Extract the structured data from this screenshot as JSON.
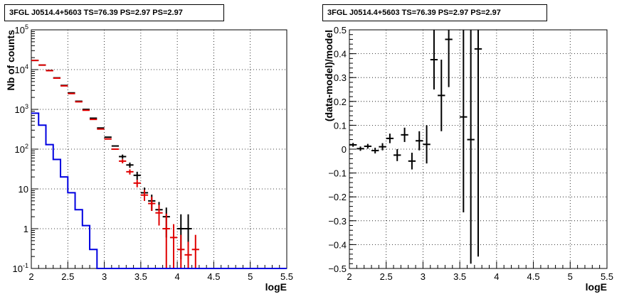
{
  "chart_data": [
    {
      "type": "line",
      "title": "3FGL J0514.4+5603 TS=76.39 PS=2.97 PS=2.97",
      "xlabel": "logE",
      "ylabel": "Nb of counts",
      "xlim": [
        2,
        5.5
      ],
      "ylim": [
        0.1,
        100000
      ],
      "yscale": "log",
      "grid": true,
      "x_ticks": [
        "2",
        "2.5",
        "3",
        "3.5",
        "4",
        "4.5",
        "5",
        "5.5"
      ],
      "y_ticks": [
        "10^-1",
        "1",
        "10",
        "10^2",
        "10^3",
        "10^4",
        "10^5"
      ],
      "series": [
        {
          "color": "#000000",
          "x": [
            2.05,
            2.15,
            2.25,
            2.35,
            2.45,
            2.55,
            2.65,
            2.75,
            2.85,
            2.95,
            3.05,
            3.15,
            3.25,
            3.35,
            3.45,
            3.55,
            3.65,
            3.75,
            3.85,
            4.05,
            4.15
          ],
          "y": [
            17000,
            13000,
            9500,
            6200,
            4000,
            2600,
            1600,
            1000,
            600,
            340,
            200,
            120,
            65,
            40,
            22,
            8,
            5,
            3,
            2,
            1,
            1
          ],
          "yerr_low": [
            0,
            0,
            0,
            0,
            0,
            0,
            0,
            0,
            0,
            0,
            0,
            0,
            8,
            6,
            5,
            2.8,
            2.2,
            1.7,
            1.4,
            0.83,
            0.83
          ],
          "yerr_high": [
            0,
            0,
            0,
            0,
            0,
            0,
            0,
            0,
            0,
            0,
            0,
            0,
            8,
            6,
            5,
            2.8,
            2.2,
            1.7,
            1.4,
            1.3,
            1.3
          ]
        },
        {
          "color": "#e00000",
          "x": [
            2.05,
            2.15,
            2.25,
            2.35,
            2.45,
            2.55,
            2.65,
            2.75,
            2.85,
            2.95,
            3.05,
            3.15,
            3.25,
            3.35,
            3.45,
            3.55,
            3.65,
            3.75,
            3.85,
            3.95,
            4.05,
            4.15,
            4.25
          ],
          "y": [
            17000,
            13000,
            9400,
            6100,
            3900,
            2500,
            1550,
            950,
            560,
            320,
            180,
            100,
            50,
            27,
            14,
            7,
            4.3,
            2.5,
            1,
            0.6,
            0.3,
            0.22,
            0.3
          ],
          "yerr_low": [
            0,
            0,
            0,
            0,
            0,
            0,
            0,
            0,
            0,
            0,
            0,
            0,
            6,
            4,
            3,
            2,
            1.5,
            1.3,
            0.9,
            0.5,
            0.2,
            0.12,
            0.2
          ],
          "yerr_high": [
            0,
            0,
            0,
            0,
            0,
            0,
            0,
            0,
            0,
            0,
            0,
            0,
            6,
            4,
            3,
            2.5,
            2,
            1.5,
            1.4,
            0.7,
            0.4,
            0.25,
            0.4
          ]
        },
        {
          "color": "#0000e0",
          "type": "step",
          "x_edges": [
            2.0,
            2.1,
            2.2,
            2.3,
            2.4,
            2.5,
            2.6,
            2.7,
            2.8,
            2.9,
            3.0
          ],
          "y": [
            800,
            400,
            130,
            55,
            20,
            8,
            3,
            1.2,
            0.3,
            0.1
          ]
        }
      ]
    },
    {
      "type": "scatter",
      "title": "3FGL J0514.4+5603 TS=76.39 PS=2.97 PS=2.97",
      "xlabel": "logE",
      "ylabel": "(data-model)/model",
      "xlim": [
        2,
        5.5
      ],
      "ylim": [
        -0.5,
        0.5
      ],
      "grid": true,
      "x_ticks": [
        "2",
        "2.5",
        "3",
        "3.5",
        "4",
        "4.5",
        "5",
        "5.5"
      ],
      "y_ticks": [
        "−0.5",
        "−0.4",
        "−0.3",
        "−0.2",
        "−0.1",
        "0",
        "0.1",
        "0.2",
        "0.3",
        "0.4",
        "0.5"
      ],
      "series": [
        {
          "color": "#000000",
          "x": [
            2.05,
            2.15,
            2.25,
            2.35,
            2.45,
            2.55,
            2.65,
            2.75,
            2.85,
            2.95,
            3.05,
            3.15,
            3.25,
            3.35,
            3.55,
            3.65,
            3.75
          ],
          "y": [
            0.018,
            0.002,
            0.012,
            -0.006,
            0.01,
            0.045,
            -0.025,
            0.06,
            -0.05,
            0.035,
            0.02,
            0.375,
            0.225,
            0.46,
            0.135,
            0.04,
            0.42
          ],
          "yerr": [
            0.008,
            0.009,
            0.01,
            0.012,
            0.015,
            0.02,
            0.025,
            0.03,
            0.035,
            0.04,
            0.08,
            0.125,
            0.15,
            0.2,
            0.4,
            0.52,
            0.87
          ]
        }
      ]
    }
  ]
}
